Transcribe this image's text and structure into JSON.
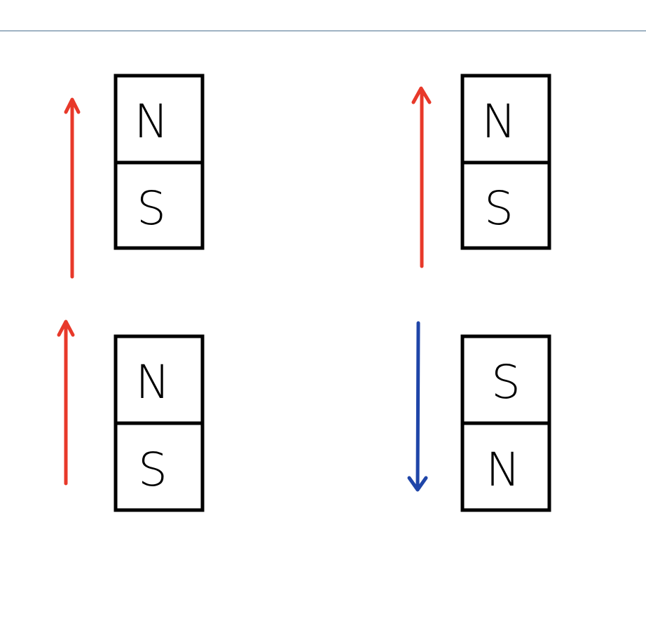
{
  "colors": {
    "up_arrow": "#e8392a",
    "down_arrow": "#1f45a8",
    "magnet_outline": "#000000",
    "top_rule": "#9fb3c3"
  },
  "pairs": [
    {
      "top_magnet": {
        "upper_pole": "N",
        "lower_pole": "S",
        "arrow": "up"
      },
      "bottom_magnet": {
        "upper_pole": "N",
        "lower_pole": "S",
        "arrow": "up"
      }
    },
    {
      "top_magnet": {
        "upper_pole": "N",
        "lower_pole": "S",
        "arrow": "up"
      },
      "bottom_magnet": {
        "upper_pole": "S",
        "lower_pole": "N",
        "arrow": "down"
      }
    }
  ]
}
